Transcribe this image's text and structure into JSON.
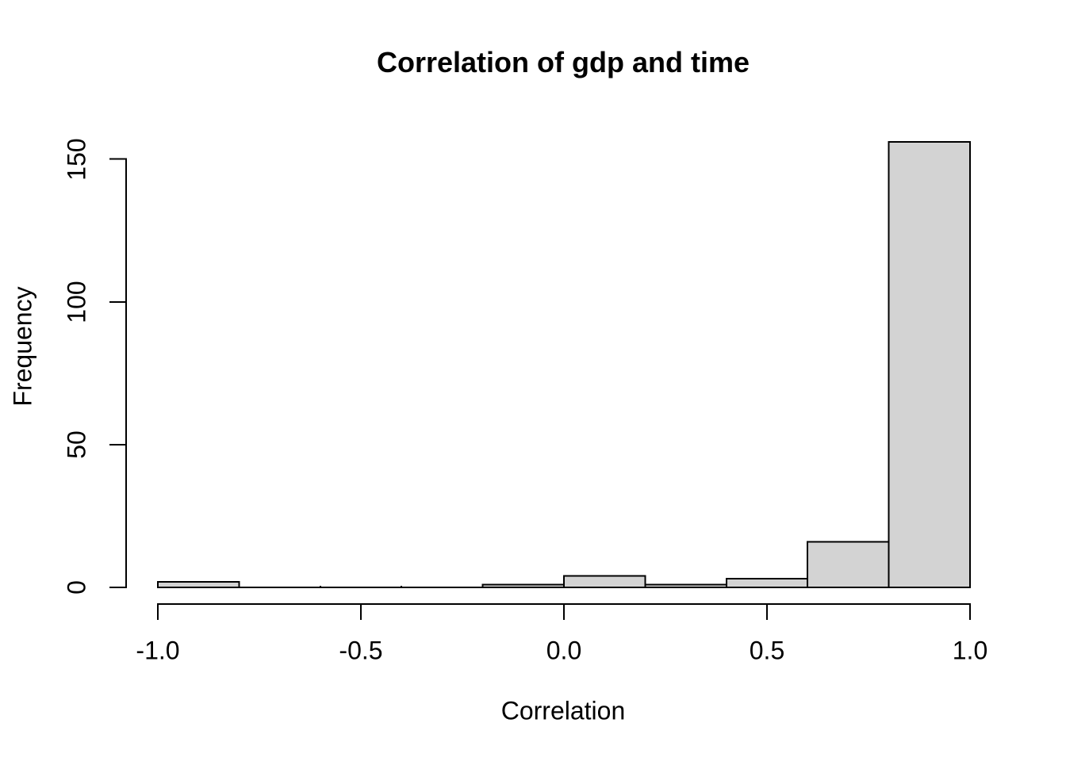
{
  "chart_data": {
    "type": "bar",
    "variant": "histogram",
    "title": "Correlation of gdp and time",
    "xlabel": "Correlation",
    "ylabel": "Frequency",
    "xlim": [
      -1.0,
      1.0
    ],
    "ylim": [
      0,
      150
    ],
    "grid": false,
    "legend": "none",
    "bin_width": 0.2,
    "bins": [
      {
        "from": -1.0,
        "to": -0.8,
        "count": 2
      },
      {
        "from": -0.8,
        "to": -0.6,
        "count": 0
      },
      {
        "from": -0.6,
        "to": -0.4,
        "count": 0
      },
      {
        "from": -0.4,
        "to": -0.2,
        "count": 0
      },
      {
        "from": -0.2,
        "to": 0.0,
        "count": 1
      },
      {
        "from": 0.0,
        "to": 0.2,
        "count": 4
      },
      {
        "from": 0.2,
        "to": 0.4,
        "count": 1
      },
      {
        "from": 0.4,
        "to": 0.6,
        "count": 3
      },
      {
        "from": 0.6,
        "to": 0.8,
        "count": 16
      },
      {
        "from": 0.8,
        "to": 1.0,
        "count": 156
      }
    ],
    "x_ticks": [
      {
        "value": -1.0,
        "label": "-1.0"
      },
      {
        "value": -0.5,
        "label": "-0.5"
      },
      {
        "value": 0.0,
        "label": "0.0"
      },
      {
        "value": 0.5,
        "label": "0.5"
      },
      {
        "value": 1.0,
        "label": "1.0"
      }
    ],
    "y_ticks": [
      {
        "value": 0,
        "label": "0"
      },
      {
        "value": 50,
        "label": "50"
      },
      {
        "value": 100,
        "label": "100"
      },
      {
        "value": 150,
        "label": "150"
      }
    ],
    "colors": {
      "bar_fill": "#d3d3d3",
      "bar_stroke": "#000000",
      "axis": "#000000",
      "text": "#000000",
      "background": "#ffffff"
    }
  }
}
